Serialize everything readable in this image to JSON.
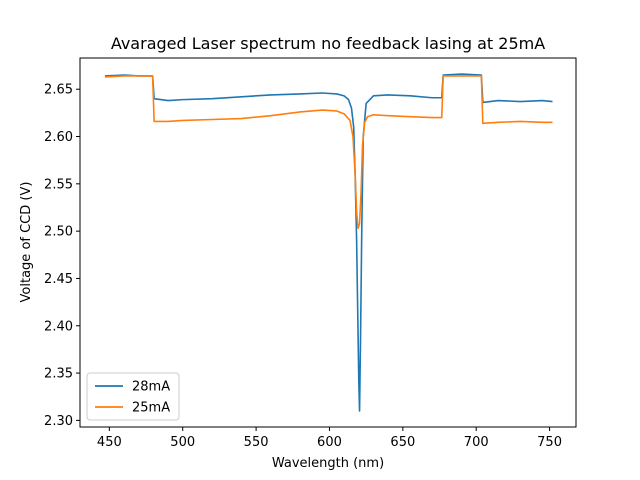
{
  "chart_data": {
    "type": "line",
    "title": "Avaraged Laser spectrum no feedback lasing at 25mA",
    "xlabel": "Wavelength (nm)",
    "ylabel": "Voltage of CCD (V)",
    "xlim": [
      430,
      768
    ],
    "ylim": [
      2.293,
      2.683
    ],
    "xticks": [
      {
        "value": 450,
        "label": "450"
      },
      {
        "value": 500,
        "label": "500"
      },
      {
        "value": 550,
        "label": "550"
      },
      {
        "value": 600,
        "label": "600"
      },
      {
        "value": 650,
        "label": "650"
      },
      {
        "value": 700,
        "label": "700"
      },
      {
        "value": 750,
        "label": "750"
      }
    ],
    "yticks": [
      {
        "value": 2.3,
        "label": "2.30"
      },
      {
        "value": 2.35,
        "label": "2.35"
      },
      {
        "value": 2.4,
        "label": "2.40"
      },
      {
        "value": 2.45,
        "label": "2.45"
      },
      {
        "value": 2.5,
        "label": "2.50"
      },
      {
        "value": 2.55,
        "label": "2.55"
      },
      {
        "value": 2.6,
        "label": "2.60"
      },
      {
        "value": 2.65,
        "label": "2.65"
      }
    ],
    "grid": false,
    "legend_position": "lower-left",
    "series": [
      {
        "name": "28mA",
        "color": "#1f77b4",
        "x": [
          447,
          460,
          470,
          479.5,
          480.5,
          490,
          500,
          520,
          540,
          560,
          580,
          595,
          605,
          610,
          613,
          615,
          616.5,
          617.5,
          618.5,
          619.2,
          620,
          620.5,
          621.2,
          622,
          623,
          625,
          630,
          640,
          655,
          670,
          676.5,
          677.5,
          690,
          703.5,
          704.5,
          715,
          730,
          745,
          752
        ],
        "y": [
          2.664,
          2.665,
          2.664,
          2.664,
          2.64,
          2.638,
          2.639,
          2.64,
          2.642,
          2.644,
          2.645,
          2.646,
          2.645,
          2.643,
          2.639,
          2.63,
          2.61,
          2.56,
          2.49,
          2.42,
          2.34,
          2.31,
          2.39,
          2.5,
          2.6,
          2.635,
          2.643,
          2.644,
          2.643,
          2.641,
          2.641,
          2.665,
          2.666,
          2.665,
          2.636,
          2.638,
          2.637,
          2.638,
          2.637
        ]
      },
      {
        "name": "25mA",
        "color": "#ff7f0e",
        "x": [
          447,
          460,
          470,
          479.5,
          480.5,
          490,
          500,
          520,
          540,
          560,
          580,
          595,
          605,
          610,
          614,
          616,
          617.5,
          618.5,
          619.5,
          620.5,
          621.5,
          622.5,
          624,
          626,
          630,
          640,
          655,
          670,
          676.5,
          677.5,
          690,
          703.5,
          704.5,
          715,
          730,
          745,
          752
        ],
        "y": [
          2.663,
          2.664,
          2.664,
          2.664,
          2.616,
          2.616,
          2.617,
          2.618,
          2.619,
          2.622,
          2.626,
          2.628,
          2.627,
          2.624,
          2.617,
          2.6,
          2.56,
          2.52,
          2.503,
          2.508,
          2.54,
          2.59,
          2.615,
          2.621,
          2.623,
          2.622,
          2.621,
          2.62,
          2.62,
          2.664,
          2.664,
          2.664,
          2.614,
          2.615,
          2.616,
          2.615,
          2.615
        ]
      }
    ]
  }
}
